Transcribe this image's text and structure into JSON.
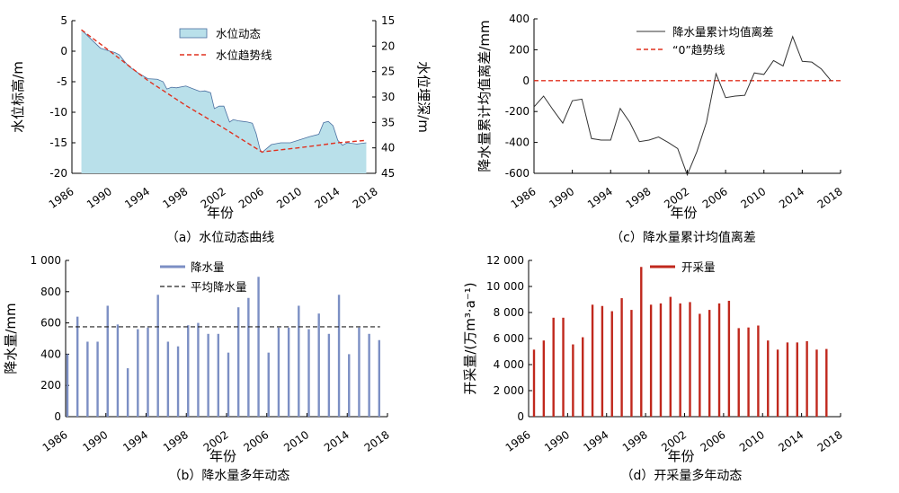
{
  "chart_data": [
    {
      "id": "a",
      "type": "area",
      "caption": "（a）水位动态曲线",
      "xlabel": "年份",
      "ylabel": "水位标高/m",
      "y2label": "水位埋深/m",
      "xlim": [
        1986,
        2018
      ],
      "ylim": [
        -20,
        5
      ],
      "y2lim": [
        45,
        15
      ],
      "xticks": [
        "1986",
        "1990",
        "1994",
        "1998",
        "2002",
        "2006",
        "2010",
        "2014",
        "2018"
      ],
      "yticks": [
        "5",
        "0",
        "-5",
        "-10",
        "-15",
        "-20"
      ],
      "y2ticks": [
        "15",
        "20",
        "25",
        "30",
        "35",
        "40",
        "45"
      ],
      "legend": {
        "position": "top-center",
        "items": [
          "水位动态",
          "水位趋势线"
        ]
      },
      "series": [
        {
          "name": "水位动态",
          "color": "#b9e0ea",
          "stroke": "#4a6fa0",
          "x": [
            1987,
            1988,
            1989,
            1990,
            1990.5,
            1991,
            1991.5,
            1992,
            1993,
            1994,
            1995,
            1995.6,
            1996,
            1996.5,
            1997,
            1998,
            1999,
            1999.5,
            2000,
            2000.6,
            2001,
            2001.5,
            2002,
            2002.6,
            2003,
            2003.5,
            2004,
            2004.5,
            2005,
            2005.4,
            2005.8,
            2006,
            2007,
            2008,
            2009,
            2010,
            2011,
            2012,
            2012.5,
            2013,
            2013.5,
            2014,
            2014.5,
            2015,
            2016,
            2017
          ],
          "y": [
            3.5,
            2.0,
            0.5,
            0.0,
            -0.2,
            -0.6,
            -1.6,
            -2.5,
            -3.6,
            -4.5,
            -4.6,
            -5.0,
            -6.2,
            -5.9,
            -6.0,
            -5.7,
            -6.3,
            -6.6,
            -6.5,
            -6.8,
            -9.4,
            -9.0,
            -9.0,
            -11.6,
            -11.2,
            -11.4,
            -11.5,
            -11.6,
            -11.8,
            -13.5,
            -16.0,
            -16.6,
            -15.3,
            -15.0,
            -15.0,
            -14.5,
            -14.0,
            -13.6,
            -11.7,
            -11.5,
            -12.2,
            -14.6,
            -15.4,
            -15.0,
            -15.2,
            -15.0
          ]
        },
        {
          "name": "水位趋势线",
          "color": "#e0301e",
          "x": [
            1987,
            1990,
            1994,
            1998,
            2002,
            2006,
            2010,
            2014,
            2017
          ],
          "y": [
            3.5,
            0.0,
            -4.8,
            -8.9,
            -12.6,
            -16.5,
            -15.8,
            -15.0,
            -14.6
          ]
        }
      ]
    },
    {
      "id": "c",
      "type": "line",
      "caption": "（c）降水量累计均值离差",
      "xlabel": "年份",
      "ylabel": "降水量累计均值离差/mm",
      "xlim": [
        1986,
        2018
      ],
      "ylim": [
        -600,
        400
      ],
      "xticks": [
        "1986",
        "1990",
        "1994",
        "1998",
        "2002",
        "2006",
        "2010",
        "2014",
        "2018"
      ],
      "yticks": [
        "400",
        "200",
        "0",
        "-200",
        "-400",
        "-600"
      ],
      "legend": {
        "position": "top-right",
        "items": [
          "降水量累计均值离差",
          "“0”趋势线"
        ]
      },
      "series": [
        {
          "name": "降水量累计均值离差",
          "color": "#333333",
          "x": [
            1986,
            1987,
            1988,
            1989,
            1990,
            1991,
            1992,
            1993,
            1994,
            1995,
            1996,
            1997,
            1998,
            1999,
            2000,
            2001,
            2002,
            2003,
            2004,
            2005,
            2006,
            2007,
            2008,
            2009,
            2010,
            2011,
            2012,
            2013,
            2014,
            2015,
            2016,
            2017
          ],
          "y": [
            -170,
            -100,
            -190,
            -275,
            -130,
            -120,
            -375,
            -385,
            -385,
            -180,
            -270,
            -395,
            -385,
            -365,
            -400,
            -440,
            -610,
            -460,
            -270,
            45,
            -110,
            -100,
            -95,
            50,
            40,
            130,
            95,
            285,
            125,
            120,
            75,
            0
          ]
        },
        {
          "name": "“0”趋势线",
          "color": "#e0301e",
          "x": [
            1986,
            2018
          ],
          "y": [
            0,
            0
          ]
        }
      ]
    },
    {
      "id": "b",
      "type": "bar",
      "caption": "（b）降水量多年动态",
      "xlabel": "年份",
      "ylabel": "降水量/mm",
      "xlim": [
        1986,
        2018
      ],
      "ylim": [
        0,
        1000
      ],
      "xticks": [
        "1986",
        "1990",
        "1994",
        "1998",
        "2002",
        "2006",
        "2010",
        "2014",
        "2018"
      ],
      "yticks": [
        "1 000",
        "800",
        "600",
        "400",
        "200",
        "0"
      ],
      "legend": {
        "position": "top-center",
        "items": [
          "降水量",
          "平均降水量"
        ]
      },
      "series": [
        {
          "name": "降水量",
          "color": "#7c8fc4",
          "x": [
            1986,
            1987,
            1988,
            1989,
            1990,
            1991,
            1992,
            1993,
            1994,
            1995,
            1996,
            1997,
            1998,
            1999,
            2000,
            2001,
            2002,
            2003,
            2004,
            2005,
            2006,
            2007,
            2008,
            2009,
            2010,
            2011,
            2012,
            2013,
            2014,
            2015,
            2016,
            2017
          ],
          "values": [
            400,
            640,
            480,
            480,
            710,
            590,
            310,
            560,
            570,
            780,
            480,
            450,
            585,
            600,
            530,
            530,
            410,
            700,
            760,
            895,
            410,
            570,
            570,
            710,
            560,
            660,
            530,
            780,
            400,
            570,
            530,
            490
          ]
        },
        {
          "name": "平均降水量",
          "color": "#222222",
          "value": 575
        }
      ]
    },
    {
      "id": "d",
      "type": "bar",
      "caption": "（d）开采量多年动态",
      "xlabel": "年份",
      "ylabel": "开采量/(万m³·a⁻¹)",
      "xlim": [
        1986,
        2018
      ],
      "ylim": [
        0,
        12000
      ],
      "xticks": [
        "1986",
        "1990",
        "1994",
        "1998",
        "2002",
        "2006",
        "2010",
        "2014",
        "2018"
      ],
      "yticks": [
        "12 000",
        "10 000",
        "8 000",
        "6 000",
        "4 000",
        "2 000",
        "0"
      ],
      "legend": {
        "position": "top-center",
        "items": [
          "开采量"
        ]
      },
      "series": [
        {
          "name": "开采量",
          "color": "#c0281d",
          "x": [
            1986,
            1987,
            1988,
            1989,
            1990,
            1991,
            1992,
            1993,
            1994,
            1995,
            1996,
            1997,
            1998,
            1999,
            2000,
            2001,
            2002,
            2003,
            2004,
            2005,
            2006,
            2007,
            2008,
            2009,
            2010,
            2011,
            2012,
            2013,
            2014,
            2015,
            2016
          ],
          "values": [
            5150,
            5850,
            7600,
            7600,
            5550,
            6100,
            8600,
            8500,
            8100,
            9100,
            8200,
            11500,
            8600,
            8700,
            9200,
            8700,
            8800,
            7900,
            8200,
            8700,
            8900,
            6800,
            6850,
            7000,
            5850,
            5150,
            5700,
            5700,
            5800,
            5150,
            5200
          ]
        }
      ]
    }
  ]
}
